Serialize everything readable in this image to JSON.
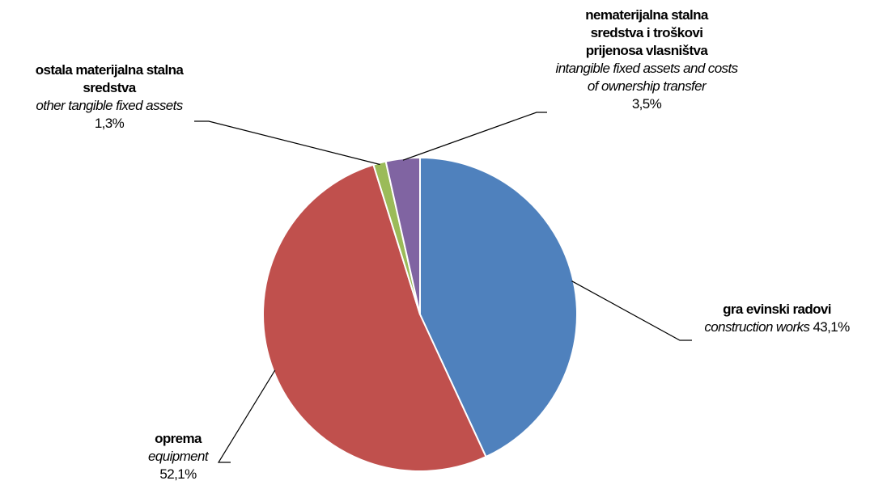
{
  "chart_data": {
    "type": "pie",
    "start_angle_deg": 0,
    "direction": "clockwise",
    "slices": [
      {
        "key": "construction",
        "label_hr": "gra evinski radovi",
        "label_en": "construction works",
        "value": 43.1,
        "value_label": "43,1%",
        "color": "#4F81BD"
      },
      {
        "key": "equipment",
        "label_hr": "oprema",
        "label_en": "equipment",
        "value": 52.1,
        "value_label": "52,1%",
        "color": "#C0504D"
      },
      {
        "key": "other",
        "label_hr": "ostala materijalna stalna sredstva",
        "label_en": "other tangible fixed assets",
        "value": 1.3,
        "value_label": "1,3%",
        "color": "#9BBB59"
      },
      {
        "key": "intangible",
        "label_hr": "nematerijalna stalna sredstva i troškovi prijenosa vlasništva",
        "label_en": "intangible fixed assets and costs of ownership transfer",
        "value": 3.5,
        "value_label": "3,5%",
        "color": "#8064A2"
      }
    ]
  }
}
